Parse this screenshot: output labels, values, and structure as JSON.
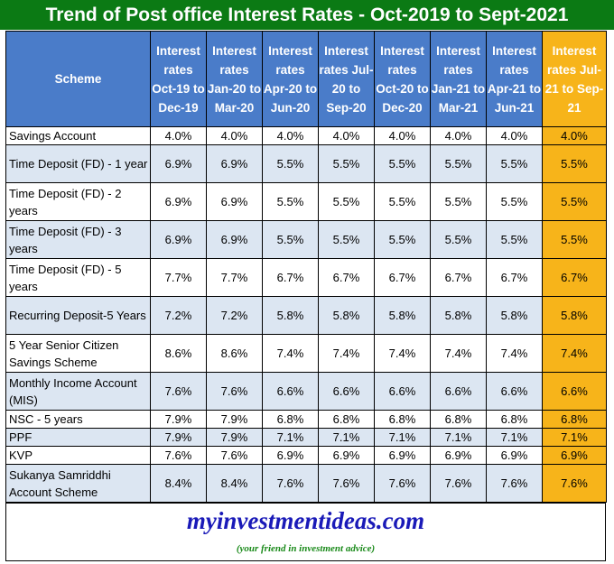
{
  "chart_data": {
    "type": "table",
    "title": "Trend of Post office Interest Rates - Oct-2019 to Sept-2021",
    "scheme_header": "Scheme",
    "columns": [
      "Interest rates Oct-19 to Dec-19",
      "Interest rates Jan-20 to Mar-20",
      "Interest rates Apr-20 to Jun-20",
      "Interest rates Jul-20 to Sep-20",
      "Interest rates Oct-20 to Dec-20",
      "Interest rates Jan-21 to Mar-21",
      "Interest rates Apr-21 to Jun-21",
      "Interest rates Jul-21 to Sep-21"
    ],
    "rows": [
      {
        "scheme": "Savings Account",
        "values": [
          "4.0%",
          "4.0%",
          "4.0%",
          "4.0%",
          "4.0%",
          "4.0%",
          "4.0%",
          "4.0%"
        ]
      },
      {
        "scheme": "Time Deposit (FD) - 1 year",
        "values": [
          "6.9%",
          "6.9%",
          "5.5%",
          "5.5%",
          "5.5%",
          "5.5%",
          "5.5%",
          "5.5%"
        ]
      },
      {
        "scheme": "Time Deposit (FD) - 2 years",
        "values": [
          "6.9%",
          "6.9%",
          "5.5%",
          "5.5%",
          "5.5%",
          "5.5%",
          "5.5%",
          "5.5%"
        ]
      },
      {
        "scheme": "Time Deposit (FD) - 3 years",
        "values": [
          "6.9%",
          "6.9%",
          "5.5%",
          "5.5%",
          "5.5%",
          "5.5%",
          "5.5%",
          "5.5%"
        ]
      },
      {
        "scheme": "Time Deposit (FD) - 5 years",
        "values": [
          "7.7%",
          "7.7%",
          "6.7%",
          "6.7%",
          "6.7%",
          "6.7%",
          "6.7%",
          "6.7%"
        ]
      },
      {
        "scheme": "Recurring Deposit-5 Years",
        "values": [
          "7.2%",
          "7.2%",
          "5.8%",
          "5.8%",
          "5.8%",
          "5.8%",
          "5.8%",
          "5.8%"
        ]
      },
      {
        "scheme": "5 Year Senior Citizen Savings Scheme",
        "values": [
          "8.6%",
          "8.6%",
          "7.4%",
          "7.4%",
          "7.4%",
          "7.4%",
          "7.4%",
          "7.4%"
        ]
      },
      {
        "scheme": "Monthly Income Account (MIS)",
        "values": [
          "7.6%",
          "7.6%",
          "6.6%",
          "6.6%",
          "6.6%",
          "6.6%",
          "6.6%",
          "6.6%"
        ]
      },
      {
        "scheme": "NSC - 5 years",
        "values": [
          "7.9%",
          "7.9%",
          "6.8%",
          "6.8%",
          "6.8%",
          "6.8%",
          "6.8%",
          "6.8%"
        ]
      },
      {
        "scheme": "PPF",
        "values": [
          "7.9%",
          "7.9%",
          "7.1%",
          "7.1%",
          "7.1%",
          "7.1%",
          "7.1%",
          "7.1%"
        ]
      },
      {
        "scheme": "KVP",
        "values": [
          "7.6%",
          "7.6%",
          "6.9%",
          "6.9%",
          "6.9%",
          "6.9%",
          "6.9%",
          "6.9%"
        ]
      },
      {
        "scheme": "Sukanya Samriddhi Account Scheme",
        "values": [
          "8.4%",
          "8.4%",
          "7.6%",
          "7.6%",
          "7.6%",
          "7.6%",
          "7.6%",
          "7.6%"
        ]
      }
    ]
  },
  "footer": {
    "site": "myinvestmentideas.com",
    "tagline": "(your friend in investment advice)"
  },
  "colors": {
    "title_bg": "#0b7a14",
    "header_bg": "#4a7cc9",
    "highlight": "#f7b41a",
    "band": "#dce6f2"
  }
}
